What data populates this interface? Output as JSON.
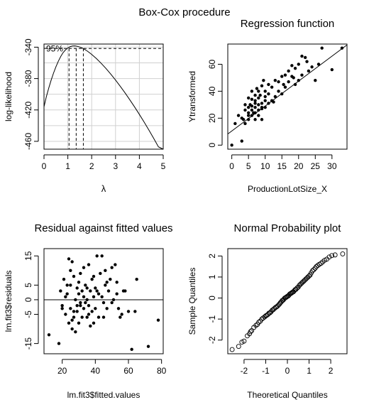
{
  "page_title": "Box-Cox procedure",
  "chart_data": [
    {
      "id": "boxcox",
      "type": "line",
      "title": "",
      "xlabel": "λ",
      "ylabel": "log-likelihood",
      "xlim": [
        0,
        5
      ],
      "ylim": [
        -470,
        -336
      ],
      "xticks": [
        0,
        1,
        2,
        3,
        4,
        5
      ],
      "yticks": [
        -460,
        -420,
        -380,
        -340
      ],
      "grid": true,
      "annotation": "95%",
      "curve": {
        "x": [
          0,
          0.1,
          0.2,
          0.3,
          0.4,
          0.5,
          0.6,
          0.7,
          0.8,
          0.9,
          1.0,
          1.1,
          1.2,
          1.3,
          1.4,
          1.5,
          1.6,
          1.7,
          1.8,
          2.0,
          2.2,
          2.4,
          2.6,
          2.8,
          3.0,
          3.2,
          3.4,
          3.6,
          3.8,
          4.0,
          4.2,
          4.4,
          4.6,
          4.8,
          5.0
        ],
        "y": [
          -416,
          -403,
          -392,
          -382,
          -373,
          -365,
          -358,
          -352,
          -347,
          -343.5,
          -341,
          -339.3,
          -338.5,
          -338.4,
          -338.9,
          -339.8,
          -341.1,
          -342.7,
          -344.6,
          -349.2,
          -354.6,
          -360.6,
          -367.2,
          -374.3,
          -381.9,
          -389.9,
          -398.3,
          -407.1,
          -416.2,
          -425.7,
          -435.5,
          -445.7,
          -456.2,
          -467.0,
          -470
        ]
      },
      "ci_line_y": -341.7,
      "vlines_x": [
        1.05,
        1.35,
        1.65
      ]
    },
    {
      "id": "regression",
      "type": "scatter",
      "title": "Regression function",
      "xlabel": "ProductionLotSize_X",
      "ylabel": "Ytransformed",
      "xlim": [
        -1.2,
        34.5
      ],
      "ylim": [
        -3,
        75
      ],
      "xticks": [
        0,
        5,
        10,
        15,
        20,
        25,
        30
      ],
      "yticks": [
        0,
        20,
        40,
        60
      ],
      "grid": false,
      "fit_line": {
        "intercept": 10.5,
        "slope": 1.85
      },
      "points": {
        "x": [
          0,
          1,
          2,
          3,
          3,
          4,
          4,
          4,
          5,
          5,
          5,
          5,
          5,
          6,
          6,
          6,
          6,
          6,
          7,
          7,
          7,
          7,
          7,
          7,
          8,
          8,
          8,
          8,
          8,
          9,
          9,
          9,
          9,
          9,
          10,
          10,
          10,
          10,
          11,
          11,
          11,
          12,
          12,
          13,
          13,
          14,
          14,
          15,
          15,
          16,
          16,
          17,
          17,
          18,
          18,
          19,
          19,
          20,
          20,
          21,
          21,
          22,
          23,
          24,
          25,
          26,
          27,
          30,
          33,
          3.5,
          6.5,
          8.5,
          12.5,
          15.5,
          18.5,
          22.5,
          7.5,
          9.5,
          5.5
        ],
        "y": [
          0,
          16,
          22,
          3,
          20,
          16,
          26,
          30,
          22,
          19,
          28,
          35,
          24,
          22,
          29,
          34,
          40,
          26,
          19,
          28,
          31,
          33,
          37,
          24,
          26,
          22,
          30,
          35,
          40,
          19,
          27,
          28,
          31,
          44,
          28,
          33,
          36,
          40,
          31,
          38,
          45,
          33,
          43,
          36,
          48,
          40,
          47,
          38,
          51,
          43,
          52,
          47,
          55,
          51,
          59,
          45,
          57,
          60,
          48,
          66,
          52,
          65,
          55,
          58,
          48,
          60,
          72,
          56,
          72,
          19,
          24,
          37,
          32,
          45,
          50,
          62,
          42,
          48,
          30
        ]
      }
    },
    {
      "id": "residuals",
      "type": "scatter",
      "title": "Residual against fitted values",
      "xlabel": "lm.fit3$fitted.values",
      "ylabel": "lm.fit3$residuals",
      "xlim": [
        9,
        81
      ],
      "ylim": [
        -18.5,
        17.5
      ],
      "xticks": [
        20,
        40,
        60,
        80
      ],
      "yticks": [
        -15,
        -5,
        0,
        5,
        15
      ],
      "grid": false,
      "hline_y": 0,
      "points": {
        "x": [
          12,
          18,
          19,
          20,
          21,
          22,
          22,
          23,
          24,
          24,
          25,
          25,
          25,
          26,
          26,
          27,
          27,
          28,
          28,
          29,
          29,
          30,
          30,
          30,
          31,
          31,
          32,
          32,
          33,
          33,
          34,
          34,
          35,
          35,
          36,
          36,
          37,
          37,
          38,
          38,
          39,
          39,
          40,
          40,
          41,
          42,
          42,
          43,
          44,
          45,
          45,
          46,
          46,
          47,
          48,
          49,
          50,
          51,
          52,
          53,
          54,
          55,
          56,
          57,
          58,
          60,
          62,
          64,
          65,
          72,
          78,
          20,
          23,
          27,
          29,
          33,
          36,
          41,
          44,
          47,
          50,
          53,
          26,
          31,
          35,
          39
        ],
        "y": [
          -12,
          -15,
          3,
          -2,
          7,
          1,
          -5,
          2,
          14,
          -8,
          10,
          5,
          -3,
          13,
          -10,
          8,
          -6,
          0,
          -11,
          4,
          -4,
          2,
          -8,
          6,
          -1,
          9,
          -6,
          3,
          -3,
          11,
          -1,
          5,
          -6,
          0,
          12,
          -2,
          3,
          -9,
          7,
          -4,
          1,
          8,
          -3,
          4,
          15,
          -6,
          2,
          9,
          15,
          -1,
          -6,
          5,
          10,
          -3,
          3,
          7,
          11,
          0,
          12,
          6,
          -3,
          -6,
          -5,
          3,
          3,
          -4,
          -17,
          -4,
          7,
          -16,
          -7,
          -3,
          5,
          -4,
          -2,
          1,
          -5,
          3,
          1,
          6,
          -1,
          2,
          -7,
          -2,
          4,
          -8
        ]
      }
    },
    {
      "id": "qq",
      "type": "scatter",
      "title": "Normal Probability plot",
      "xlabel": "Theoretical Quantiles",
      "ylabel": "Sample Quantiles",
      "xlim": [
        -2.75,
        2.75
      ],
      "ylim": [
        -2.65,
        2.35
      ],
      "xticks": [
        -2,
        -1,
        0,
        1,
        2
      ],
      "yticks": [
        -2,
        -1,
        0,
        1,
        2
      ],
      "grid": false,
      "points_x": [
        -2.55,
        -2.25,
        -2.1,
        -2.0,
        -1.85,
        -1.75,
        -1.7,
        -1.65,
        -1.55,
        -1.45,
        -1.38,
        -1.32,
        -1.25,
        -1.18,
        -1.12,
        -1.05,
        -1.0,
        -0.95,
        -0.9,
        -0.85,
        -0.8,
        -0.75,
        -0.7,
        -0.65,
        -0.6,
        -0.55,
        -0.5,
        -0.45,
        -0.4,
        -0.36,
        -0.32,
        -0.28,
        -0.24,
        -0.2,
        -0.16,
        -0.12,
        -0.08,
        -0.04,
        0.0,
        0.04,
        0.08,
        0.12,
        0.16,
        0.2,
        0.24,
        0.28,
        0.32,
        0.36,
        0.4,
        0.45,
        0.5,
        0.55,
        0.6,
        0.65,
        0.7,
        0.75,
        0.8,
        0.85,
        0.9,
        0.95,
        1.0,
        1.05,
        1.1,
        1.16,
        1.22,
        1.28,
        1.34,
        1.4,
        1.47,
        1.55,
        1.63,
        1.72,
        1.82,
        1.93,
        2.05,
        2.2,
        2.55
      ],
      "points_y": [
        -2.45,
        -2.3,
        -2.1,
        -2.05,
        -1.8,
        -1.7,
        -1.6,
        -1.55,
        -1.4,
        -1.3,
        -1.25,
        -1.15,
        -1.1,
        -1.0,
        -0.95,
        -0.9,
        -0.85,
        -0.82,
        -0.78,
        -0.72,
        -0.7,
        -0.65,
        -0.58,
        -0.55,
        -0.5,
        -0.45,
        -0.42,
        -0.38,
        -0.32,
        -0.28,
        -0.22,
        -0.18,
        -0.12,
        -0.1,
        -0.05,
        0.0,
        0.02,
        0.05,
        0.08,
        0.1,
        0.15,
        0.2,
        0.22,
        0.25,
        0.28,
        0.3,
        0.35,
        0.4,
        0.42,
        0.48,
        0.52,
        0.6,
        0.65,
        0.7,
        0.75,
        0.8,
        0.85,
        0.9,
        0.95,
        1.0,
        1.05,
        1.1,
        1.2,
        1.3,
        1.35,
        1.42,
        1.5,
        1.55,
        1.6,
        1.65,
        1.72,
        1.8,
        1.85,
        1.95,
        2.02,
        2.05,
        2.1
      ]
    }
  ]
}
